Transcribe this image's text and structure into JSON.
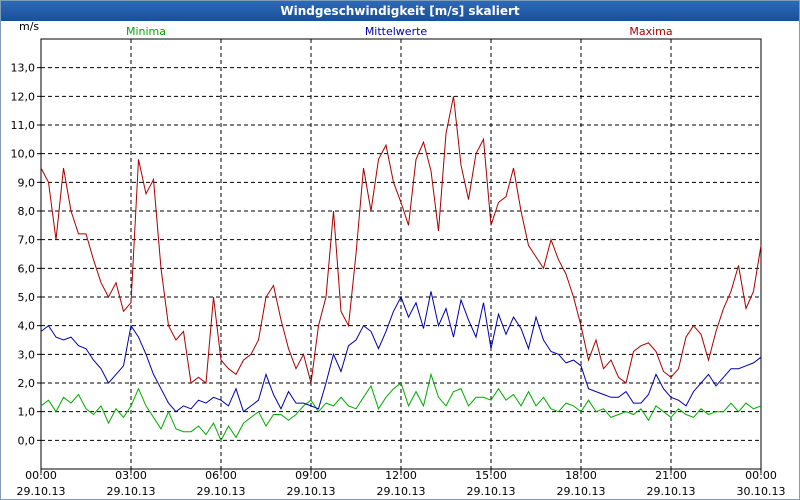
{
  "window": {
    "title": "Windgeschwindigkeit [m/s] skaliert"
  },
  "chart_data": {
    "type": "line",
    "title": "Windgeschwindigkeit [m/s] skaliert",
    "ylabel": "m/s",
    "xlabel": "",
    "ylim": [
      -1,
      14
    ],
    "xlim": [
      0,
      24
    ],
    "y_ticks": [
      "0,0",
      "1,0",
      "2,0",
      "3,0",
      "4,0",
      "5,0",
      "6,0",
      "7,0",
      "8,0",
      "9,0",
      "10,0",
      "11,0",
      "12,0",
      "13,0"
    ],
    "x_ticks": [
      {
        "time": "00:00",
        "date": "29.10.13"
      },
      {
        "time": "03:00",
        "date": "29.10.13"
      },
      {
        "time": "06:00",
        "date": "29.10.13"
      },
      {
        "time": "09:00",
        "date": "29.10.13"
      },
      {
        "time": "12:00",
        "date": "29.10.13"
      },
      {
        "time": "15:00",
        "date": "29.10.13"
      },
      {
        "time": "18:00",
        "date": "29.10.13"
      },
      {
        "time": "21:00",
        "date": "29.10.13"
      },
      {
        "time": "00:00",
        "date": "30.10.13"
      }
    ],
    "grid": true,
    "series": [
      {
        "name": "Minima",
        "color": "#00aa00",
        "x": [
          0,
          0.25,
          0.5,
          0.75,
          1,
          1.25,
          1.5,
          1.75,
          2,
          2.25,
          2.5,
          2.75,
          3,
          3.25,
          3.5,
          3.75,
          4,
          4.25,
          4.5,
          4.75,
          5,
          5.25,
          5.5,
          5.75,
          6,
          6.25,
          6.5,
          6.75,
          7,
          7.25,
          7.5,
          7.75,
          8,
          8.25,
          8.5,
          8.75,
          9,
          9.25,
          9.5,
          9.75,
          10,
          10.25,
          10.5,
          10.75,
          11,
          11.25,
          11.5,
          11.75,
          12,
          12.25,
          12.5,
          12.75,
          13,
          13.25,
          13.5,
          13.75,
          14,
          14.25,
          14.5,
          14.75,
          15,
          15.25,
          15.5,
          15.75,
          16,
          16.25,
          16.5,
          16.75,
          17,
          17.25,
          17.5,
          17.75,
          18,
          18.25,
          18.5,
          18.75,
          19,
          19.25,
          19.5,
          19.75,
          20,
          20.25,
          20.5,
          20.75,
          21,
          21.25,
          21.5,
          21.75,
          22,
          22.25,
          22.5,
          22.75,
          23,
          23.25,
          23.5,
          23.75,
          24
        ],
        "values": [
          1.2,
          1.4,
          1.0,
          1.5,
          1.3,
          1.6,
          1.1,
          0.9,
          1.2,
          0.6,
          1.1,
          0.8,
          1.2,
          1.8,
          1.2,
          0.8,
          0.4,
          1.0,
          0.4,
          0.3,
          0.3,
          0.5,
          0.2,
          0.6,
          0.0,
          0.5,
          0.1,
          0.6,
          0.8,
          1.0,
          0.5,
          0.9,
          0.9,
          0.7,
          0.9,
          1.2,
          1.4,
          1.0,
          1.3,
          1.2,
          1.5,
          1.2,
          1.1,
          1.5,
          1.9,
          1.1,
          1.5,
          1.8,
          2.0,
          1.2,
          1.7,
          1.2,
          2.3,
          1.5,
          1.2,
          1.7,
          1.8,
          1.2,
          1.5,
          1.5,
          1.4,
          1.8,
          1.4,
          1.6,
          1.2,
          1.7,
          1.2,
          1.5,
          1.1,
          1.0,
          1.3,
          1.2,
          1.0,
          1.4,
          1.0,
          1.1,
          0.8,
          0.9,
          1.0,
          0.9,
          1.1,
          0.7,
          1.2,
          1.0,
          0.8,
          1.1,
          0.9,
          0.8,
          1.1,
          0.9,
          1.0,
          1.0,
          1.3,
          1.0,
          1.3,
          1.1,
          1.2
        ]
      },
      {
        "name": "Mittelwerte",
        "color": "#0000aa",
        "x": [
          0,
          0.25,
          0.5,
          0.75,
          1,
          1.25,
          1.5,
          1.75,
          2,
          2.25,
          2.5,
          2.75,
          3,
          3.25,
          3.5,
          3.75,
          4,
          4.25,
          4.5,
          4.75,
          5,
          5.25,
          5.5,
          5.75,
          6,
          6.25,
          6.5,
          6.75,
          7,
          7.25,
          7.5,
          7.75,
          8,
          8.25,
          8.5,
          8.75,
          9,
          9.25,
          9.5,
          9.75,
          10,
          10.25,
          10.5,
          10.75,
          11,
          11.25,
          11.5,
          11.75,
          12,
          12.25,
          12.5,
          12.75,
          13,
          13.25,
          13.5,
          13.75,
          14,
          14.25,
          14.5,
          14.75,
          15,
          15.25,
          15.5,
          15.75,
          16,
          16.25,
          16.5,
          16.75,
          17,
          17.25,
          17.5,
          17.75,
          18,
          18.25,
          18.5,
          18.75,
          19,
          19.25,
          19.5,
          19.75,
          20,
          20.25,
          20.5,
          20.75,
          21,
          21.25,
          21.5,
          21.75,
          22,
          22.25,
          22.5,
          22.75,
          23,
          23.25,
          23.5,
          23.75,
          24
        ],
        "values": [
          3.8,
          4.0,
          3.6,
          3.5,
          3.6,
          3.3,
          3.2,
          2.8,
          2.5,
          2.0,
          2.3,
          2.6,
          4.0,
          3.6,
          3.0,
          2.3,
          1.8,
          1.3,
          1.0,
          1.2,
          1.1,
          1.4,
          1.3,
          1.5,
          1.4,
          1.2,
          1.8,
          1.0,
          1.2,
          1.4,
          2.3,
          1.6,
          1.1,
          1.7,
          1.3,
          1.3,
          1.2,
          1.1,
          2.0,
          3.0,
          2.4,
          3.3,
          3.5,
          4.0,
          3.8,
          3.2,
          3.8,
          4.5,
          5.0,
          4.3,
          4.8,
          3.9,
          5.2,
          4.0,
          4.6,
          3.6,
          4.9,
          4.2,
          3.6,
          4.8,
          3.2,
          4.4,
          3.7,
          4.3,
          3.9,
          3.2,
          4.3,
          3.5,
          3.1,
          3.0,
          2.7,
          2.8,
          2.6,
          1.8,
          1.7,
          1.6,
          1.5,
          1.5,
          1.7,
          1.3,
          1.3,
          1.6,
          2.3,
          1.8,
          1.5,
          1.4,
          1.2,
          1.7,
          2.0,
          2.3,
          1.9,
          2.2,
          2.5,
          2.5,
          2.6,
          2.7,
          2.9
        ]
      },
      {
        "name": "Maxima",
        "color": "#aa0000",
        "x": [
          0,
          0.25,
          0.5,
          0.75,
          1,
          1.25,
          1.5,
          1.75,
          2,
          2.25,
          2.5,
          2.75,
          3,
          3.25,
          3.5,
          3.75,
          4,
          4.25,
          4.5,
          4.75,
          5,
          5.25,
          5.5,
          5.75,
          6,
          6.25,
          6.5,
          6.75,
          7,
          7.25,
          7.5,
          7.75,
          8,
          8.25,
          8.5,
          8.75,
          9,
          9.25,
          9.5,
          9.75,
          10,
          10.25,
          10.5,
          10.75,
          11,
          11.25,
          11.5,
          11.75,
          12,
          12.25,
          12.5,
          12.75,
          13,
          13.25,
          13.5,
          13.75,
          14,
          14.25,
          14.5,
          14.75,
          15,
          15.25,
          15.5,
          15.75,
          16,
          16.25,
          16.5,
          16.75,
          17,
          17.25,
          17.5,
          17.75,
          18,
          18.25,
          18.5,
          18.75,
          19,
          19.25,
          19.5,
          19.75,
          20,
          20.25,
          20.5,
          20.75,
          21,
          21.25,
          21.5,
          21.75,
          22,
          22.25,
          22.5,
          22.75,
          23,
          23.25,
          23.5,
          23.75,
          24
        ],
        "values": [
          9.5,
          9.0,
          7.0,
          9.5,
          8.0,
          7.2,
          7.2,
          6.3,
          5.5,
          5.0,
          5.5,
          4.5,
          4.8,
          9.8,
          8.6,
          9.1,
          6.0,
          4.0,
          3.5,
          3.8,
          2.0,
          2.2,
          2.0,
          5.0,
          2.8,
          2.5,
          2.3,
          2.8,
          3.0,
          3.5,
          5.0,
          5.4,
          4.2,
          3.2,
          2.5,
          3.0,
          2.0,
          4.0,
          5.0,
          8.0,
          4.5,
          4.0,
          6.5,
          9.5,
          8.0,
          9.8,
          10.3,
          9.0,
          8.3,
          7.5,
          9.8,
          10.4,
          9.4,
          7.3,
          10.7,
          12.0,
          9.6,
          8.4,
          10.0,
          10.5,
          7.5,
          8.3,
          8.5,
          9.5,
          8.0,
          6.8,
          6.4,
          6.0,
          7.0,
          6.3,
          5.8,
          5.0,
          4.0,
          2.8,
          3.5,
          2.5,
          2.8,
          2.2,
          2.0,
          3.1,
          3.3,
          3.4,
          3.1,
          2.4,
          2.2,
          2.5,
          3.6,
          4.0,
          3.7,
          2.8,
          3.8,
          4.6,
          5.2,
          6.1,
          4.6,
          5.2,
          6.8
        ]
      }
    ]
  }
}
